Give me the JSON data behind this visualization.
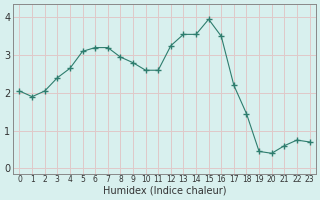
{
  "x": [
    0,
    1,
    2,
    3,
    4,
    5,
    6,
    7,
    8,
    9,
    10,
    11,
    12,
    13,
    14,
    15,
    16,
    17,
    18,
    19,
    20,
    21,
    22,
    23
  ],
  "y": [
    2.05,
    1.9,
    2.05,
    2.4,
    2.65,
    3.1,
    3.2,
    3.2,
    2.95,
    2.8,
    2.6,
    2.6,
    3.25,
    3.55,
    3.55,
    3.95,
    3.5,
    2.2,
    1.45,
    0.45,
    0.4,
    0.6,
    0.75,
    0.7
  ],
  "xlabel": "Humidex (Indice chaleur)",
  "ylim": [
    -0.15,
    4.35
  ],
  "xlim": [
    -0.5,
    23.5
  ],
  "line_color": "#2e7d6e",
  "marker": "+",
  "marker_size": 4,
  "bg_color": "#d8f0ee",
  "grid_color": "#e0c8c8",
  "yticks": [
    0,
    1,
    2,
    3,
    4
  ],
  "xtick_labels": [
    "0",
    "1",
    "2",
    "3",
    "4",
    "5",
    "6",
    "7",
    "8",
    "9",
    "10",
    "11",
    "12",
    "13",
    "14",
    "15",
    "16",
    "17",
    "18",
    "19",
    "20",
    "21",
    "22",
    "23"
  ],
  "xlabel_fontsize": 7,
  "ytick_fontsize": 7,
  "xtick_fontsize": 5.5,
  "spine_color": "#888888"
}
